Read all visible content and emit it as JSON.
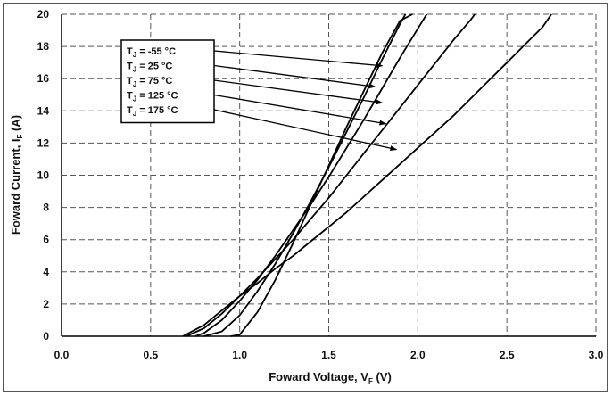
{
  "chart_data": {
    "type": "line",
    "xlabel": {
      "prefix": "Foward Voltage, V",
      "sub": "F",
      "suffix": " (V)"
    },
    "ylabel": {
      "prefix": "Foward Current, I",
      "sub": "F",
      "suffix": " (A)"
    },
    "xlim": [
      0,
      3.0
    ],
    "ylim": [
      0,
      20
    ],
    "x_ticks": [
      "0.0",
      "0.5",
      "1.0",
      "1.5",
      "2.0",
      "2.5",
      "3.0"
    ],
    "y_ticks": [
      "0",
      "2",
      "4",
      "6",
      "8",
      "10",
      "12",
      "14",
      "16",
      "18",
      "20"
    ],
    "grid": "dashed",
    "legend_position": "upper-left",
    "line_color": "#000000",
    "series": [
      {
        "name": "T",
        "sub": "J",
        "value": " = -55 °C",
        "arrow_to": [
          1.8,
          16.8
        ],
        "points": [
          [
            0.95,
            0
          ],
          [
            1.0,
            0.1
          ],
          [
            1.1,
            1.5
          ],
          [
            1.2,
            3.5
          ],
          [
            1.3,
            5.8
          ],
          [
            1.4,
            8.2
          ],
          [
            1.5,
            10.6
          ],
          [
            1.6,
            13.0
          ],
          [
            1.7,
            15.3
          ],
          [
            1.8,
            17.6
          ],
          [
            1.9,
            19.6
          ],
          [
            1.97,
            20
          ]
        ]
      },
      {
        "name": "T",
        "sub": "J",
        "value": " = 25 °C",
        "arrow_to": [
          1.76,
          15.5
        ],
        "points": [
          [
            0.8,
            0
          ],
          [
            0.9,
            0.3
          ],
          [
            1.0,
            1.3
          ],
          [
            1.1,
            2.8
          ],
          [
            1.2,
            4.5
          ],
          [
            1.3,
            6.4
          ],
          [
            1.4,
            8.4
          ],
          [
            1.5,
            10.5
          ],
          [
            1.6,
            12.7
          ],
          [
            1.7,
            14.9
          ],
          [
            1.8,
            17.2
          ],
          [
            1.9,
            19.4
          ],
          [
            1.93,
            20
          ]
        ]
      },
      {
        "name": "T",
        "sub": "J",
        "value": " = 75 °C",
        "arrow_to": [
          1.8,
          14.5
        ],
        "points": [
          [
            0.75,
            0
          ],
          [
            0.8,
            0.2
          ],
          [
            0.9,
            1.0
          ],
          [
            1.0,
            2.2
          ],
          [
            1.1,
            3.5
          ],
          [
            1.2,
            5.0
          ],
          [
            1.3,
            6.6
          ],
          [
            1.4,
            8.2
          ],
          [
            1.5,
            9.9
          ],
          [
            1.6,
            11.7
          ],
          [
            1.7,
            13.5
          ],
          [
            1.8,
            15.4
          ],
          [
            1.9,
            17.3
          ],
          [
            2.0,
            19.1
          ],
          [
            2.05,
            20
          ]
        ]
      },
      {
        "name": "T",
        "sub": "J",
        "value": " = 125 °C",
        "arrow_to": [
          1.82,
          13.2
        ],
        "points": [
          [
            0.7,
            0
          ],
          [
            0.8,
            0.5
          ],
          [
            0.9,
            1.4
          ],
          [
            1.0,
            2.5
          ],
          [
            1.1,
            3.6
          ],
          [
            1.2,
            4.8
          ],
          [
            1.3,
            6.0
          ],
          [
            1.4,
            7.3
          ],
          [
            1.5,
            8.6
          ],
          [
            1.6,
            10.0
          ],
          [
            1.7,
            11.4
          ],
          [
            1.8,
            12.8
          ],
          [
            1.9,
            14.2
          ],
          [
            2.0,
            15.6
          ],
          [
            2.1,
            17.0
          ],
          [
            2.2,
            18.4
          ],
          [
            2.3,
            19.7
          ],
          [
            2.32,
            20
          ]
        ]
      },
      {
        "name": "T",
        "sub": "J",
        "value": " = 175 °C",
        "arrow_to": [
          1.88,
          11.6
        ],
        "points": [
          [
            0.68,
            0
          ],
          [
            0.8,
            0.7
          ],
          [
            0.9,
            1.6
          ],
          [
            1.0,
            2.5
          ],
          [
            1.1,
            3.3
          ],
          [
            1.2,
            4.2
          ],
          [
            1.3,
            5.0
          ],
          [
            1.4,
            5.9
          ],
          [
            1.5,
            6.8
          ],
          [
            1.6,
            7.7
          ],
          [
            1.7,
            8.7
          ],
          [
            1.8,
            9.7
          ],
          [
            1.9,
            10.7
          ],
          [
            2.0,
            11.7
          ],
          [
            2.1,
            12.7
          ],
          [
            2.2,
            13.7
          ],
          [
            2.3,
            14.8
          ],
          [
            2.4,
            15.9
          ],
          [
            2.5,
            17.0
          ],
          [
            2.6,
            18.1
          ],
          [
            2.7,
            19.2
          ],
          [
            2.75,
            20
          ]
        ]
      }
    ]
  }
}
